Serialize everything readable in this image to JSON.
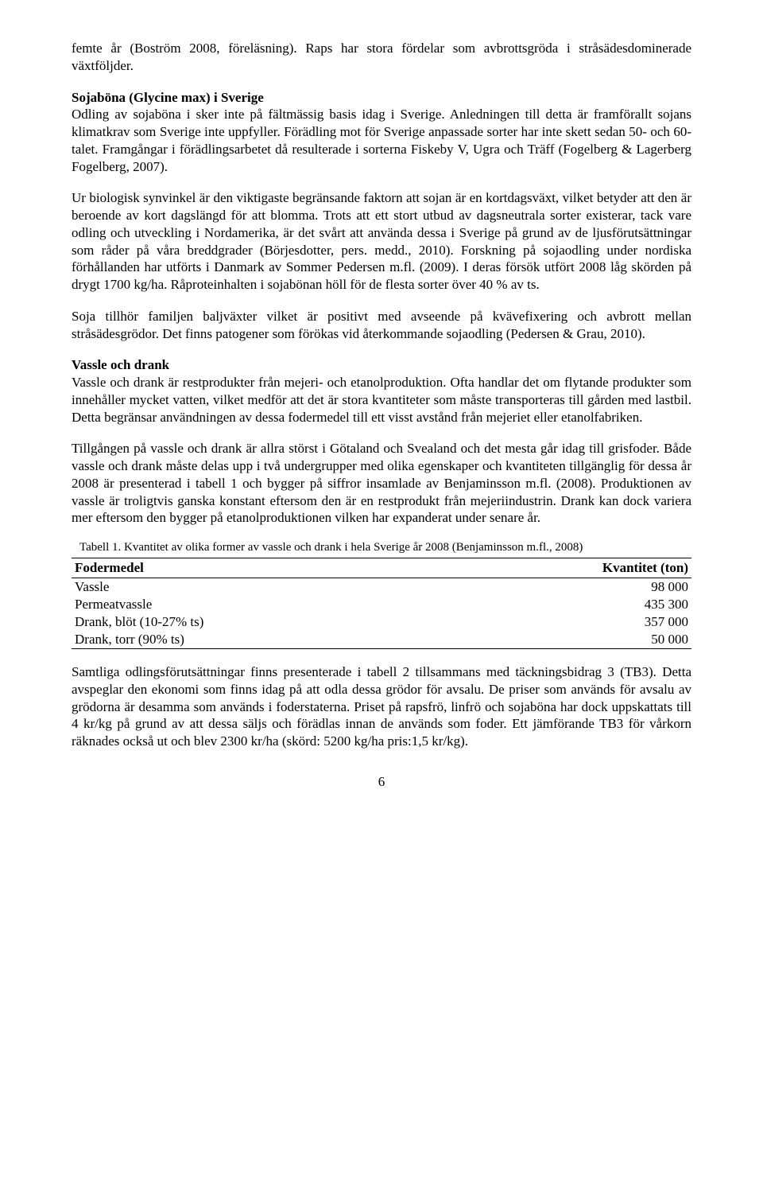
{
  "paragraphs": {
    "p1": "femte år (Boström 2008, föreläsning). Raps har stora fördelar som avbrottsgröda i stråsädesdominerade växtföljder.",
    "h_soja": "Sojaböna (Glycine max) i Sverige",
    "p2": "Odling av sojaböna i sker inte på fältmässig basis idag i Sverige. Anledningen till detta är framförallt sojans klimatkrav som Sverige inte uppfyller. Förädling mot för Sverige anpassade sorter har inte skett sedan 50- och 60-talet. Framgångar i förädlingsarbetet då resulterade i sorterna Fiskeby V, Ugra och Träff (Fogelberg & Lagerberg Fogelberg, 2007).",
    "p3": "Ur biologisk synvinkel är den viktigaste begränsande faktorn att sojan är en kortdagsväxt, vilket betyder att den är beroende av kort dagslängd för att blomma. Trots att ett stort utbud av dagsneutrala sorter existerar, tack vare odling och utveckling i Nordamerika, är det svårt att använda dessa i Sverige på grund av de ljusförutsättningar som råder på våra breddgrader (Börjesdotter, pers. medd., 2010). Forskning på sojaodling under nordiska förhållanden har utförts i Danmark av Sommer Pedersen m.fl. (2009). I deras försök utfört 2008 låg skörden på drygt 1700 kg/ha. Råproteinhalten i sojabönan höll för de flesta sorter över 40 % av ts.",
    "p4": "Soja tillhör familjen baljväxter vilket är positivt med avseende på kvävefixering och avbrott mellan stråsädesgrödor. Det finns patogener som förökas vid återkommande sojaodling (Pedersen & Grau, 2010).",
    "h_vassle": "Vassle och drank",
    "p5": "Vassle och drank är restprodukter från mejeri- och etanolproduktion. Ofta handlar det om flytande produkter som innehåller mycket vatten, vilket medför att det är stora kvantiteter som måste transporteras till gården med lastbil. Detta begränsar användningen av dessa fodermedel till ett visst avstånd från mejeriet eller etanolfabriken.",
    "p6": "Tillgången på vassle och drank är allra störst i Götaland och Svealand och det mesta går idag till grisfoder. Både vassle och drank måste delas upp i två undergrupper med olika egenskaper och kvantiteten tillgänglig för dessa år 2008 är presenterad i tabell 1 och bygger på siffror insamlade av Benjaminsson m.fl. (2008). Produktionen av vassle är troligtvis ganska konstant eftersom den är en restprodukt från mejeriindustrin. Drank kan dock variera mer eftersom den bygger på etanolproduktionen vilken har expanderat under senare år.",
    "table_caption": "Tabell 1. Kvantitet av olika former av vassle och drank i hela Sverige år 2008 (Benjaminsson m.fl., 2008)",
    "p7": "Samtliga odlingsförutsättningar finns presenterade i tabell 2 tillsammans med täckningsbidrag 3 (TB3). Detta avspeglar den ekonomi som finns idag på att odla dessa grödor för avsalu. De priser som används för avsalu av grödorna är desamma som används i foderstaterna. Priset på rapsfrö, linfrö och sojaböna har dock uppskattats till 4 kr/kg på grund av att dessa säljs och förädlas innan de används som foder. Ett jämförande TB3 för vårkorn räknades också ut och blev 2300 kr/ha (skörd: 5200 kg/ha pris:1,5 kr/kg)."
  },
  "table": {
    "col1": "Fodermedel",
    "col2": "Kvantitet (ton)",
    "rows": [
      {
        "name": "Vassle",
        "qty": "98 000"
      },
      {
        "name": "Permeatvassle",
        "qty": "435 300"
      },
      {
        "name": "Drank, blöt (10-27% ts)",
        "qty": "357 000"
      },
      {
        "name": "Drank, torr (90% ts)",
        "qty": "50 000"
      }
    ]
  },
  "pagenum": "6"
}
